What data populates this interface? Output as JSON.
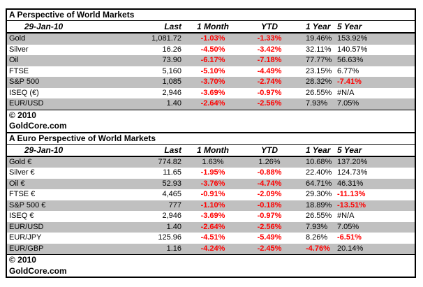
{
  "colors": {
    "row_shade": "#C0C0C0",
    "negative_value": "#FF0000",
    "text": "#000000",
    "border": "#000000",
    "background": "#FFFFFF"
  },
  "tables": [
    {
      "title": "A Perspective of World Markets",
      "date_header": "29-Jan-10",
      "columns": [
        "Last",
        "1 Month",
        "YTD",
        "1 Year",
        "5 Year"
      ],
      "rows": [
        [
          "Gold",
          "1,081.72",
          "-1.03%",
          "-1.33%",
          "19.46%",
          "153.92%"
        ],
        [
          "Silver",
          "16.26",
          "-4.50%",
          "-3.42%",
          "32.11%",
          "140.57%"
        ],
        [
          "Oil",
          "73.90",
          "-6.17%",
          "-7.18%",
          "77.77%",
          "56.63%"
        ],
        [
          "FTSE",
          "5,160",
          "-5.10%",
          "-4.49%",
          "23.15%",
          "6.77%"
        ],
        [
          "S&P 500",
          "1,085",
          "-3.70%",
          "-2.74%",
          "28.32%",
          "-7.41%"
        ],
        [
          "ISEQ (€)",
          "2,946",
          "-3.69%",
          "-0.97%",
          "26.55%",
          "#N/A"
        ],
        [
          "EUR/USD",
          "1.40",
          "-2.64%",
          "-2.56%",
          "7.93%",
          "7.05%"
        ]
      ],
      "footer": [
        "© 2010",
        "GoldCore.com"
      ]
    },
    {
      "title": "A Euro Perspective of World Markets",
      "date_header": "29-Jan-10",
      "columns": [
        "Last",
        "1 Month",
        "YTD",
        "1 Year",
        "5 Year"
      ],
      "rows": [
        [
          "Gold €",
          "774.82",
          "1.63%",
          "1.26%",
          "10.68%",
          "137.20%"
        ],
        [
          "Silver €",
          "11.65",
          "-1.95%",
          "-0.88%",
          "22.40%",
          "124.73%"
        ],
        [
          "Oil €",
          "52.93",
          "-3.76%",
          "-4.74%",
          "64.71%",
          "46.31%"
        ],
        [
          "FTSE €",
          "4,465",
          "-0.91%",
          "-2.09%",
          "29.30%",
          "-11.13%"
        ],
        [
          "S&P 500 €",
          "777",
          "-1.10%",
          "-0.18%",
          "18.89%",
          "-13.51%"
        ],
        [
          "ISEQ €",
          "2,946",
          "-3.69%",
          "-0.97%",
          "26.55%",
          "#N/A"
        ],
        [
          "EUR/USD",
          "1.40",
          "-2.64%",
          "-2.56%",
          "7.93%",
          "7.05%"
        ],
        [
          "EUR/JPY",
          "125.96",
          "-4.51%",
          "-5.49%",
          "8.26%",
          "-6.51%"
        ],
        [
          "EUR/GBP",
          "1.16",
          "-4.24%",
          "-2.45%",
          "-4.76%",
          "20.14%"
        ]
      ],
      "footer": [
        "© 2010",
        "GoldCore.com"
      ]
    }
  ]
}
